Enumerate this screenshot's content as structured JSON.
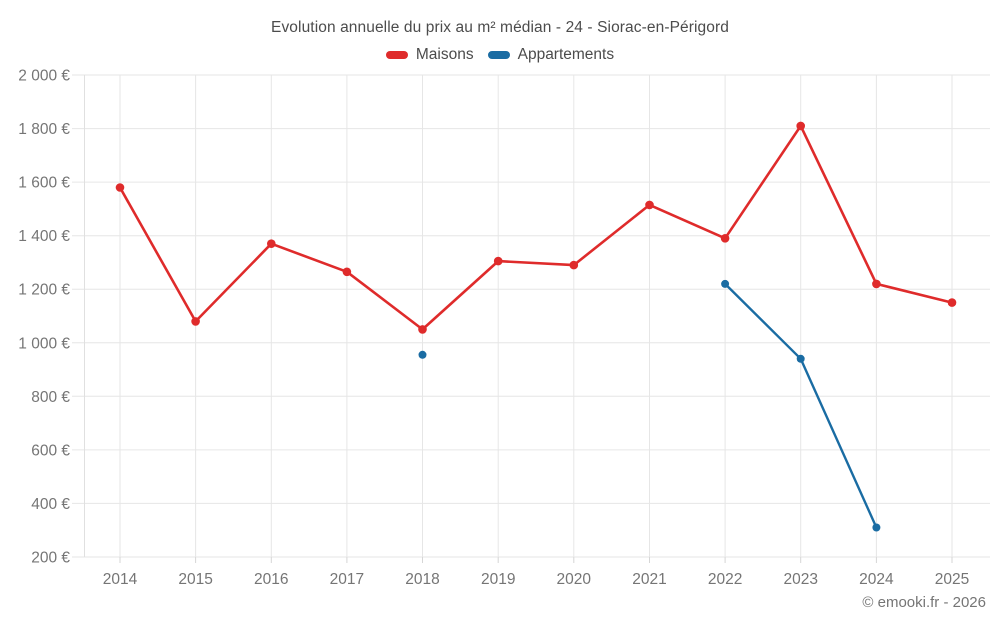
{
  "footer": {
    "copyright": "© emooki.fr - 2026"
  },
  "colors": {
    "maisons": "#df2b2b",
    "appartements": "#1a6ca3",
    "grid": "#e6e6e6",
    "axis": "#e0e0e0",
    "tick": "#d6d6d6",
    "axis_text": "#757575",
    "title_text": "#4c4c4c"
  },
  "chart_data": {
    "type": "line",
    "title": "Evolution annuelle du prix au m² médian - 24 - Siorac-en-Périgord",
    "categories": [
      "2014",
      "2015",
      "2016",
      "2017",
      "2018",
      "2019",
      "2020",
      "2021",
      "2022",
      "2023",
      "2024",
      "2025"
    ],
    "series": [
      {
        "name": "Maisons",
        "color": "#df2b2b",
        "values": [
          1580,
          1080,
          1370,
          1265,
          1050,
          1305,
          1290,
          1515,
          1390,
          1810,
          1220,
          1150
        ]
      },
      {
        "name": "Appartements",
        "color": "#1a6ca3",
        "values": [
          null,
          null,
          null,
          null,
          955,
          null,
          null,
          null,
          1220,
          940,
          310,
          null
        ]
      }
    ],
    "ylim": [
      200,
      2000
    ],
    "yticks": [
      {
        "value": 2000,
        "label": "2 000 €"
      },
      {
        "value": 1800,
        "label": "1 800 €"
      },
      {
        "value": 1600,
        "label": "1 600 €"
      },
      {
        "value": 1400,
        "label": "1 400 €"
      },
      {
        "value": 1200,
        "label": "1 200 €"
      },
      {
        "value": 1000,
        "label": "1 000 €"
      },
      {
        "value": 800,
        "label": "800 €"
      },
      {
        "value": 600,
        "label": "600 €"
      },
      {
        "value": 400,
        "label": "400 €"
      },
      {
        "value": 200,
        "label": "200 €"
      }
    ],
    "xlabel": "",
    "ylabel": "",
    "grid": true,
    "legend_position": "top"
  }
}
